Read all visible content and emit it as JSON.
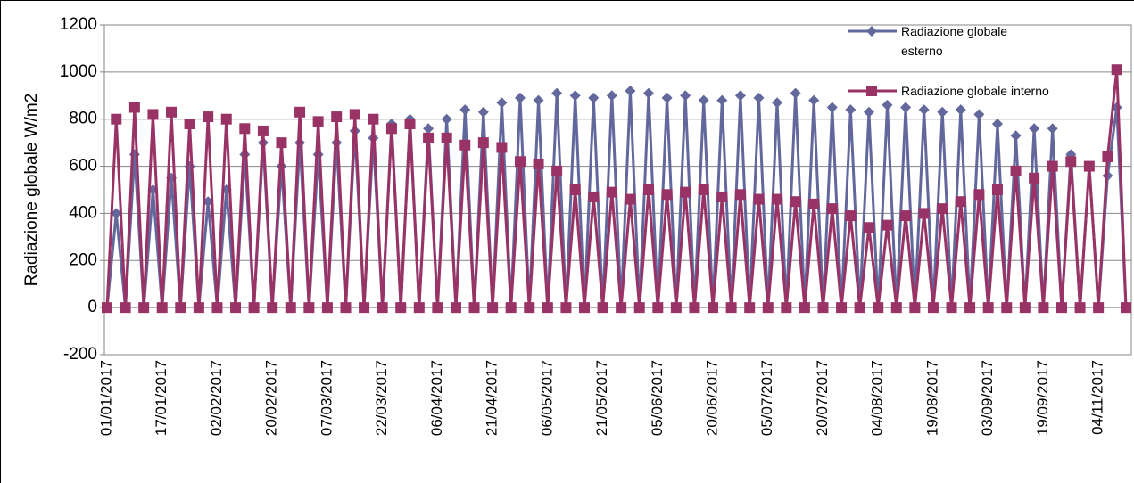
{
  "chart_data": {
    "type": "line",
    "y_label": "Radiazione globale  W/m2",
    "categories": [
      "01/01/2017",
      null,
      null,
      null,
      null,
      null,
      "17/01/2017",
      null,
      null,
      null,
      null,
      null,
      "02/02/2017",
      null,
      null,
      null,
      null,
      null,
      "20/02/2017",
      null,
      null,
      null,
      null,
      null,
      "07/03/2017",
      null,
      null,
      null,
      null,
      null,
      "22/03/2017",
      null,
      null,
      null,
      null,
      null,
      "06/04/2017",
      null,
      null,
      null,
      null,
      null,
      "21/04/2017",
      null,
      null,
      null,
      null,
      null,
      "06/05/2017",
      null,
      null,
      null,
      null,
      null,
      "21/05/2017",
      null,
      null,
      null,
      null,
      null,
      "05/06/2017",
      null,
      null,
      null,
      null,
      null,
      "20/06/2017",
      null,
      null,
      null,
      null,
      null,
      "05/07/2017",
      null,
      null,
      null,
      null,
      null,
      "20/07/2017",
      null,
      null,
      null,
      null,
      null,
      "04/08/2017",
      null,
      null,
      null,
      null,
      null,
      "19/08/2017",
      null,
      null,
      null,
      null,
      null,
      "03/09/2017",
      null,
      null,
      null,
      null,
      null,
      "19/09/2017",
      null,
      null,
      null,
      null,
      null,
      "04/11/2017",
      null,
      null,
      null
    ],
    "series": [
      {
        "name": "Radiazione globale esterno",
        "color": "#62679c",
        "marker": "diamond",
        "values": [
          0,
          400,
          0,
          650,
          0,
          500,
          0,
          550,
          0,
          600,
          0,
          450,
          0,
          500,
          0,
          650,
          0,
          700,
          0,
          600,
          0,
          700,
          0,
          650,
          0,
          700,
          0,
          750,
          0,
          720,
          0,
          780,
          0,
          800,
          0,
          760,
          0,
          800,
          0,
          840,
          0,
          830,
          0,
          870,
          0,
          890,
          0,
          880,
          0,
          910,
          0,
          900,
          0,
          890,
          0,
          900,
          0,
          920,
          0,
          910,
          0,
          890,
          0,
          900,
          0,
          880,
          0,
          880,
          0,
          900,
          0,
          890,
          0,
          870,
          0,
          910,
          0,
          880,
          0,
          850,
          0,
          840,
          0,
          830,
          0,
          860,
          0,
          850,
          0,
          840,
          0,
          830,
          0,
          840,
          0,
          820,
          0,
          780,
          0,
          730,
          0,
          760,
          0,
          760,
          0,
          650,
          0,
          600,
          0,
          560,
          850,
          0
        ]
      },
      {
        "name": "Radiazione globale interno",
        "color": "#993366",
        "marker": "square",
        "values": [
          0,
          800,
          0,
          850,
          0,
          820,
          0,
          830,
          0,
          780,
          0,
          810,
          0,
          800,
          0,
          760,
          0,
          750,
          0,
          700,
          0,
          830,
          0,
          790,
          0,
          810,
          0,
          820,
          0,
          800,
          0,
          760,
          0,
          780,
          0,
          720,
          0,
          720,
          0,
          690,
          0,
          700,
          0,
          680,
          0,
          620,
          0,
          610,
          0,
          580,
          0,
          500,
          0,
          470,
          0,
          490,
          0,
          460,
          0,
          500,
          0,
          480,
          0,
          490,
          0,
          500,
          0,
          470,
          0,
          480,
          0,
          460,
          0,
          460,
          0,
          450,
          0,
          440,
          0,
          420,
          0,
          390,
          0,
          340,
          0,
          350,
          0,
          390,
          0,
          400,
          0,
          420,
          0,
          450,
          0,
          480,
          0,
          500,
          0,
          580,
          0,
          550,
          0,
          600,
          0,
          620,
          0,
          600,
          0,
          640,
          1010,
          0
        ]
      }
    ],
    "ylim": [
      -200,
      1200
    ],
    "yticks": [
      -200,
      0,
      200,
      400,
      600,
      800,
      1000,
      1200
    ],
    "grid": true,
    "legend": "top-right"
  }
}
